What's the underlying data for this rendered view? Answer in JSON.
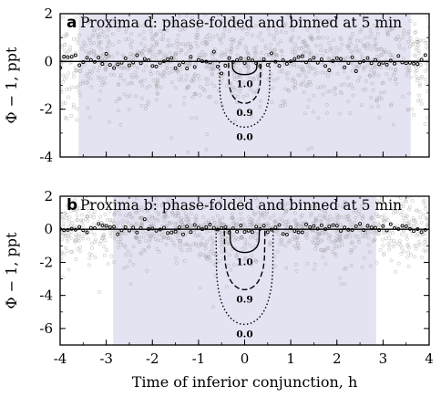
{
  "chart_data": [
    {
      "type": "scatter",
      "panel_letter": "a",
      "title": "Proxima d: phase-folded and binned at 5 min",
      "xlabel": "",
      "ylabel": "Φ − 1, ppt",
      "xlim": [
        -4,
        4
      ],
      "ylim": [
        -4,
        2
      ],
      "x_ticks": [
        "-4",
        "-2",
        "0",
        "2",
        "4"
      ],
      "y_ticks": [
        "-4",
        "-2",
        "0",
        "2"
      ],
      "shaded_region": [
        -3.6,
        3.6
      ],
      "zero_line": 0,
      "transit_models": [
        {
          "label": "1.0",
          "depth": -0.55,
          "half_width": 0.27
        },
        {
          "label": "0.9",
          "depth": -1.75,
          "half_width": 0.35
        },
        {
          "label": "0.0",
          "depth": -2.75,
          "half_width": 0.55
        }
      ],
      "scatter_description": "individual flux measurements (grey) and 5-min bins (black) clustered around 0"
    },
    {
      "type": "scatter",
      "panel_letter": "b",
      "title": "Proxima b: phase-folded and binned at 5 min",
      "xlabel": "Time of inferior conjunction, h",
      "ylabel": "Φ − 1, ppt",
      "xlim": [
        -4,
        4
      ],
      "ylim": [
        -7,
        2
      ],
      "x_ticks": [
        "-4",
        "-3",
        "-2",
        "-1",
        "0",
        "1",
        "2",
        "3",
        "4"
      ],
      "y_ticks": [
        "-6",
        "-4",
        "-2",
        "0",
        "2"
      ],
      "shaded_region": [
        -2.85,
        2.85
      ],
      "zero_line": 0,
      "transit_models": [
        {
          "label": "1.0",
          "depth": -1.4,
          "half_width": 0.32
        },
        {
          "label": "0.9",
          "depth": -3.65,
          "half_width": 0.44
        },
        {
          "label": "0.0",
          "depth": -5.75,
          "half_width": 0.62
        }
      ],
      "scatter_description": "individual flux measurements (grey) and 5-min bins (black) clustered around 0"
    }
  ],
  "colors": {
    "shade": "#e4e3f2",
    "scatter_grey": "#9a9a9a",
    "binned": "#000000"
  }
}
